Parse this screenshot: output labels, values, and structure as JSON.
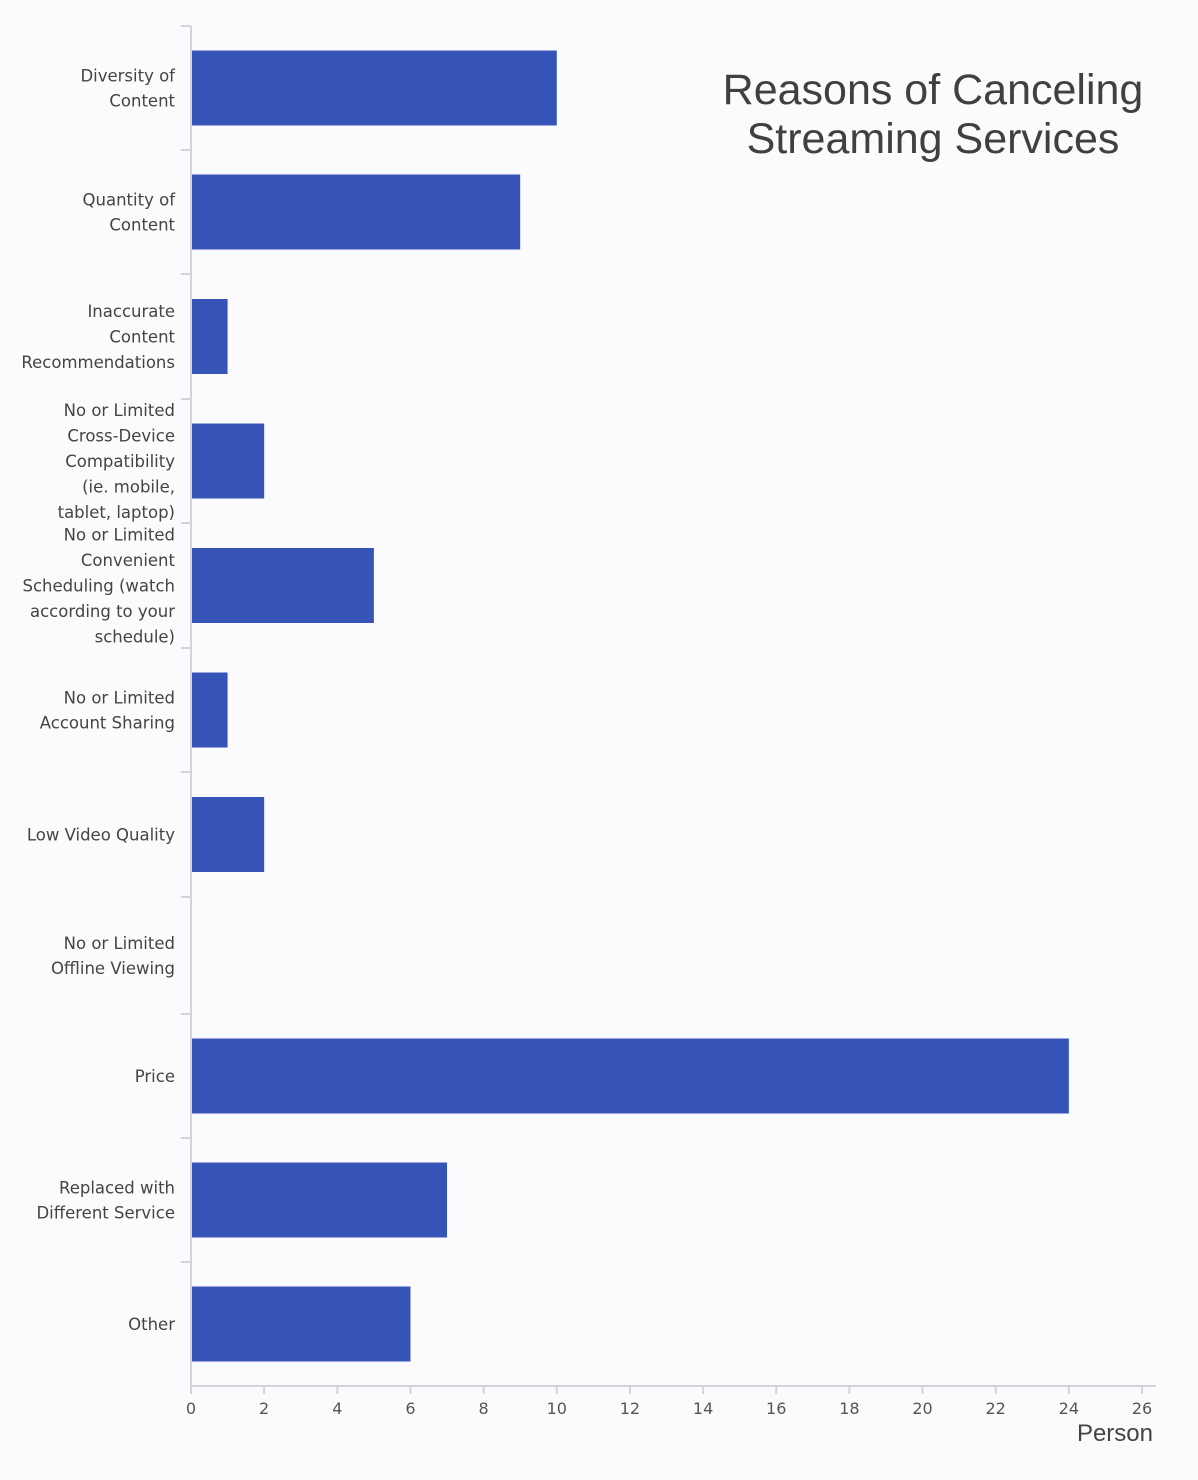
{
  "chart_data": {
    "type": "bar",
    "orientation": "horizontal",
    "title": "Reasons of Canceling Streaming Services",
    "title_lines": [
      "Reasons of Canceling",
      "Streaming Services"
    ],
    "xlabel": "Person",
    "ylabel": "",
    "xlim": [
      0,
      26
    ],
    "xticks": [
      "0",
      "2",
      "4",
      "6",
      "8",
      "10",
      "12",
      "14",
      "16",
      "18",
      "20",
      "22",
      "24",
      "26"
    ],
    "grid": false,
    "legend": "none",
    "bar_color": "#3654b8",
    "categories": [
      [
        "Diversity of",
        "Content"
      ],
      [
        "Quantity of",
        "Content"
      ],
      [
        "Inaccurate",
        "Content",
        "Recommendations"
      ],
      [
        "No or Limited",
        "Cross-Device",
        "Compatibility",
        "(ie. mobile,",
        "tablet, laptop)"
      ],
      [
        "No or Limited",
        "Convenient",
        "Scheduling (watch",
        "according to your",
        "schedule)"
      ],
      [
        "No or Limited",
        "Account Sharing"
      ],
      [
        "Low Video Quality"
      ],
      [
        "No or Limited",
        "Offline Viewing"
      ],
      [
        "Price"
      ],
      [
        "Replaced with",
        "Different Service"
      ],
      [
        "Other"
      ]
    ],
    "values": [
      10,
      9,
      1,
      2,
      5,
      1,
      2,
      0,
      24,
      7,
      6
    ]
  }
}
